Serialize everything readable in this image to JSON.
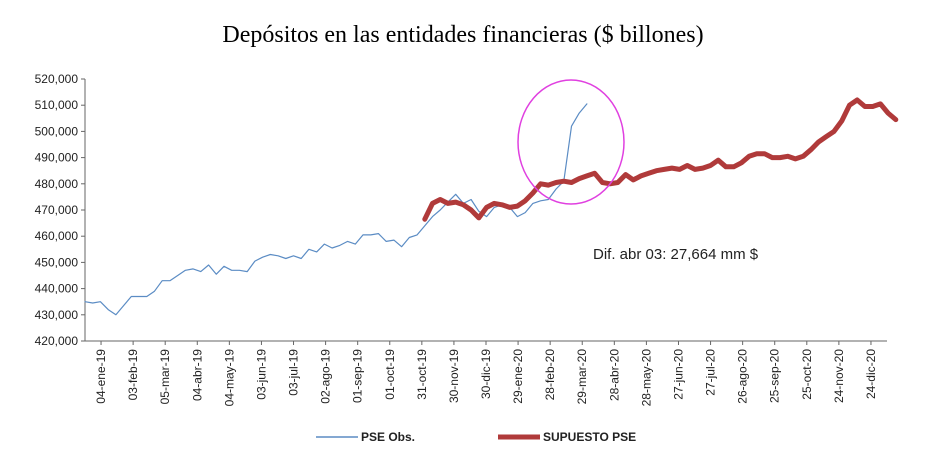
{
  "chart_data": {
    "type": "line",
    "title": "Depósitos en las entidades financieras ($ billones)",
    "xlabel": "",
    "ylabel": "",
    "ylim": [
      420000,
      520000
    ],
    "y_ticks": [
      "420,000",
      "430,000",
      "440,000",
      "450,000",
      "460,000",
      "470,000",
      "480,000",
      "490,000",
      "500,000",
      "510,000",
      "520,000"
    ],
    "x_ticks": [
      "04-ene-19",
      "03-feb-19",
      "05-mar-19",
      "04-abr-19",
      "04-may-19",
      "03-jun-19",
      "03-jul-19",
      "02-ago-19",
      "01-sep-19",
      "01-oct-19",
      "31-oct-19",
      "30-nov-19",
      "30-dic-19",
      "29-ene-20",
      "28-feb-20",
      "29-mar-20",
      "28-abr-20",
      "28-may-20",
      "27-jun-20",
      "27-jul-20",
      "26-ago-20",
      "25-sep-20",
      "25-oct-20",
      "24-nov-20",
      "24-dic-20"
    ],
    "x_range": [
      "2019-01-04",
      "2020-12-31"
    ],
    "grid": false,
    "legend": "bottom",
    "annotation": "Dif. abr 03: 27,664 mm $",
    "highlight": "magenta ellipse around the observed series late March 2020",
    "series": [
      {
        "name": "PSE Obs.",
        "color": "#5b8cc4",
        "points": [
          [
            "2019-01-04",
            435000
          ],
          [
            "2019-01-11",
            434500
          ],
          [
            "2019-01-18",
            435000
          ],
          [
            "2019-01-25",
            432000
          ],
          [
            "2019-02-01",
            430000
          ],
          [
            "2019-02-08",
            433500
          ],
          [
            "2019-02-15",
            437000
          ],
          [
            "2019-02-22",
            437000
          ],
          [
            "2019-03-01",
            437000
          ],
          [
            "2019-03-08",
            439000
          ],
          [
            "2019-03-15",
            443000
          ],
          [
            "2019-03-22",
            443000
          ],
          [
            "2019-03-29",
            445000
          ],
          [
            "2019-04-05",
            447000
          ],
          [
            "2019-04-12",
            447500
          ],
          [
            "2019-04-19",
            446500
          ],
          [
            "2019-04-26",
            449000
          ],
          [
            "2019-05-03",
            445500
          ],
          [
            "2019-05-10",
            448500
          ],
          [
            "2019-05-17",
            447000
          ],
          [
            "2019-05-24",
            447000
          ],
          [
            "2019-05-31",
            446500
          ],
          [
            "2019-06-07",
            450500
          ],
          [
            "2019-06-14",
            452000
          ],
          [
            "2019-06-21",
            453000
          ],
          [
            "2019-06-28",
            452500
          ],
          [
            "2019-07-05",
            451500
          ],
          [
            "2019-07-12",
            452500
          ],
          [
            "2019-07-19",
            451500
          ],
          [
            "2019-07-26",
            455000
          ],
          [
            "2019-08-02",
            454000
          ],
          [
            "2019-08-09",
            457000
          ],
          [
            "2019-08-16",
            455500
          ],
          [
            "2019-08-23",
            456500
          ],
          [
            "2019-08-30",
            458000
          ],
          [
            "2019-09-06",
            457000
          ],
          [
            "2019-09-13",
            460500
          ],
          [
            "2019-09-20",
            460500
          ],
          [
            "2019-09-27",
            461000
          ],
          [
            "2019-10-04",
            458000
          ],
          [
            "2019-10-11",
            458500
          ],
          [
            "2019-10-18",
            456000
          ],
          [
            "2019-10-25",
            459500
          ],
          [
            "2019-11-01",
            460500
          ],
          [
            "2019-11-08",
            464000
          ],
          [
            "2019-11-15",
            467500
          ],
          [
            "2019-11-22",
            470000
          ],
          [
            "2019-11-29",
            473000
          ],
          [
            "2019-12-06",
            476000
          ],
          [
            "2019-12-13",
            472500
          ],
          [
            "2019-12-20",
            474000
          ],
          [
            "2019-12-27",
            469500
          ],
          [
            "2020-01-03",
            467500
          ],
          [
            "2020-01-10",
            471000
          ],
          [
            "2020-01-17",
            472000
          ],
          [
            "2020-01-24",
            471000
          ],
          [
            "2020-01-31",
            467500
          ],
          [
            "2020-02-07",
            469000
          ],
          [
            "2020-02-14",
            472500
          ],
          [
            "2020-02-21",
            473500
          ],
          [
            "2020-02-28",
            474000
          ],
          [
            "2020-03-06",
            478000
          ],
          [
            "2020-03-13",
            481000
          ],
          [
            "2020-03-20",
            502000
          ],
          [
            "2020-03-27",
            507000
          ],
          [
            "2020-04-03",
            510500
          ]
        ]
      },
      {
        "name": "SUPUESTO PSE",
        "color": "#b03a3a",
        "points": [
          [
            "2019-11-08",
            466500
          ],
          [
            "2019-11-15",
            472500
          ],
          [
            "2019-11-22",
            474000
          ],
          [
            "2019-11-29",
            472500
          ],
          [
            "2019-12-06",
            473000
          ],
          [
            "2019-12-13",
            472000
          ],
          [
            "2019-12-20",
            470000
          ],
          [
            "2019-12-27",
            467000
          ],
          [
            "2020-01-03",
            471000
          ],
          [
            "2020-01-10",
            472500
          ],
          [
            "2020-01-17",
            472000
          ],
          [
            "2020-01-24",
            471000
          ],
          [
            "2020-01-31",
            471500
          ],
          [
            "2020-02-07",
            473500
          ],
          [
            "2020-02-14",
            476500
          ],
          [
            "2020-02-21",
            480000
          ],
          [
            "2020-02-28",
            479500
          ],
          [
            "2020-03-06",
            480500
          ],
          [
            "2020-03-13",
            481000
          ],
          [
            "2020-03-20",
            480500
          ],
          [
            "2020-03-27",
            482000
          ],
          [
            "2020-04-03",
            483000
          ],
          [
            "2020-04-10",
            484000
          ],
          [
            "2020-04-17",
            480500
          ],
          [
            "2020-04-24",
            480000
          ],
          [
            "2020-05-01",
            480500
          ],
          [
            "2020-05-08",
            483500
          ],
          [
            "2020-05-15",
            481500
          ],
          [
            "2020-05-22",
            483000
          ],
          [
            "2020-05-29",
            484000
          ],
          [
            "2020-06-05",
            485000
          ],
          [
            "2020-06-12",
            485500
          ],
          [
            "2020-06-19",
            486000
          ],
          [
            "2020-06-26",
            485500
          ],
          [
            "2020-07-03",
            487000
          ],
          [
            "2020-07-10",
            485500
          ],
          [
            "2020-07-17",
            486000
          ],
          [
            "2020-07-24",
            487000
          ],
          [
            "2020-07-31",
            489000
          ],
          [
            "2020-08-07",
            486500
          ],
          [
            "2020-08-14",
            486500
          ],
          [
            "2020-08-21",
            488000
          ],
          [
            "2020-08-28",
            490500
          ],
          [
            "2020-09-04",
            491500
          ],
          [
            "2020-09-11",
            491500
          ],
          [
            "2020-09-18",
            490000
          ],
          [
            "2020-09-25",
            490000
          ],
          [
            "2020-10-02",
            490500
          ],
          [
            "2020-10-09",
            489500
          ],
          [
            "2020-10-16",
            490500
          ],
          [
            "2020-10-23",
            493000
          ],
          [
            "2020-10-30",
            496000
          ],
          [
            "2020-11-06",
            498000
          ],
          [
            "2020-11-13",
            500000
          ],
          [
            "2020-11-20",
            504000
          ],
          [
            "2020-11-27",
            510000
          ],
          [
            "2020-12-04",
            512000
          ],
          [
            "2020-12-11",
            509500
          ],
          [
            "2020-12-18",
            509500
          ],
          [
            "2020-12-25",
            510500
          ],
          [
            "2021-01-01",
            507000
          ],
          [
            "2021-01-08",
            504500
          ]
        ]
      }
    ]
  }
}
